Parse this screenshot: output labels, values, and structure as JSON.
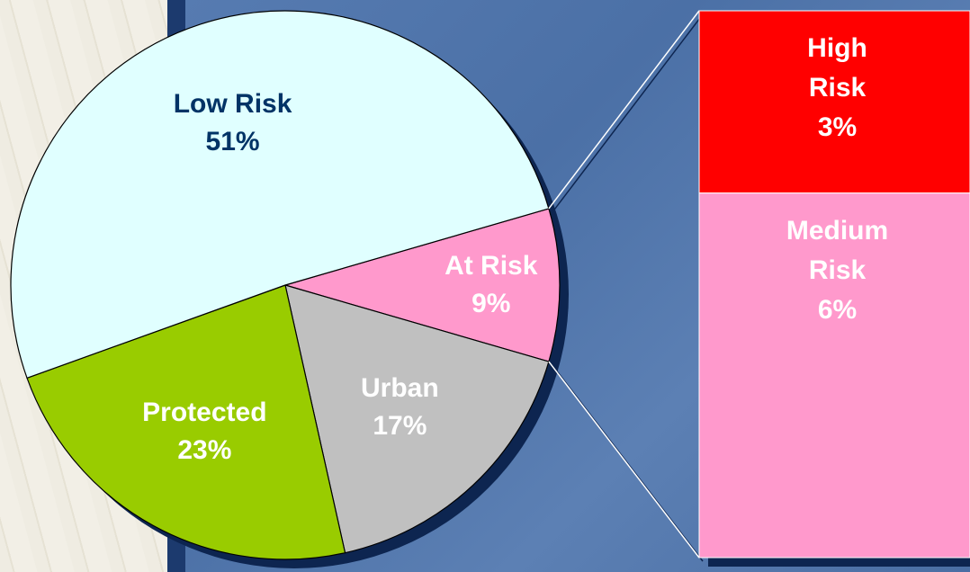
{
  "chart_data": {
    "type": "pie-of-bar",
    "slices": [
      {
        "name": "At Risk",
        "value": 9,
        "value_label": "9%",
        "color": "#ff99cc",
        "label_color": "#ffffff"
      },
      {
        "name": "Urban",
        "value": 17,
        "value_label": "17%",
        "color": "#c0c0c0",
        "label_color": "#ffffff"
      },
      {
        "name": "Protected",
        "value": 23,
        "value_label": "23%",
        "color": "#99cc00",
        "label_color": "#ffffff"
      },
      {
        "name": "Low Risk",
        "value": 51,
        "value_label": "51%",
        "color": "#e0ffff",
        "label_color": "#003366"
      }
    ],
    "breakdown": [
      {
        "name": "High Risk",
        "value": 3,
        "value_label": "3%",
        "color": "#ff0000",
        "label_color": "#ffffff"
      },
      {
        "name": "Medium Risk",
        "value": 6,
        "value_label": "6%",
        "color": "#ff99cc",
        "label_color": "#ffffff"
      }
    ]
  }
}
